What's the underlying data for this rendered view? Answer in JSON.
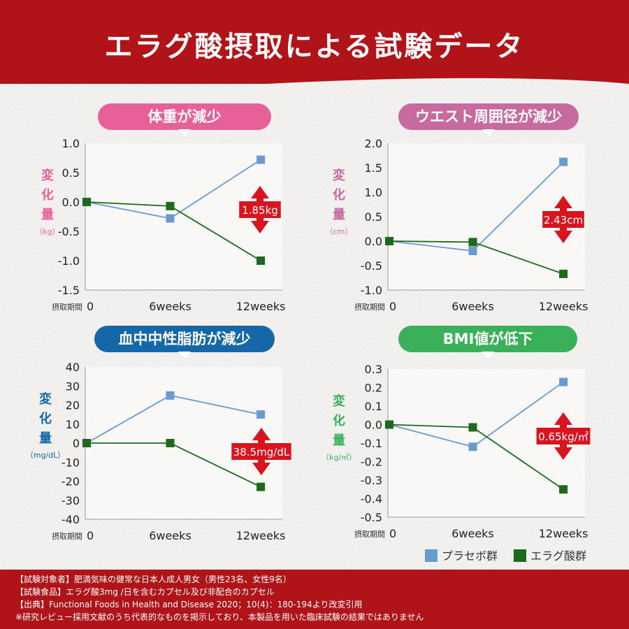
{
  "title": "エラグ酸摂取による試験データ",
  "colors": {
    "placebo": "#6a9bd0",
    "ellagic": "#1d6a1d",
    "badge": "#d8141e",
    "pink": "#e8609a",
    "mauve": "#c66aa0",
    "blue": "#1567a8",
    "green": "#3bb05a"
  },
  "legend": {
    "placebo": "プラセボ群",
    "ellagic": "エラグ酸群"
  },
  "chart_data": [
    {
      "type": "line",
      "pill": "体重が減少",
      "ylabel_chars": [
        "変",
        "化",
        "量"
      ],
      "unit": "（kg）",
      "xlabel": "摂取期間",
      "categories": [
        "0",
        "6weeks",
        "12weeks"
      ],
      "yticks": [
        "1.0",
        "0.5",
        "0.0",
        "-0.5",
        "-1.0",
        "-1.5"
      ],
      "ylim": [
        -1.5,
        1.0
      ],
      "series": [
        {
          "name": "プラセボ群",
          "values": [
            0.0,
            -0.28,
            0.72
          ]
        },
        {
          "name": "エラグ酸群",
          "values": [
            0.0,
            -0.07,
            -1.0
          ]
        }
      ],
      "badge": "1.85kg"
    },
    {
      "type": "line",
      "pill": "ウエスト周囲径が減少",
      "ylabel_chars": [
        "変",
        "化",
        "量"
      ],
      "unit": "（cm）",
      "xlabel": "摂取期間",
      "categories": [
        "0",
        "6weeks",
        "12weeks"
      ],
      "yticks": [
        "2.0",
        "1.5",
        "1.0",
        "0.5",
        "0.0",
        "-0.5",
        "-1.0"
      ],
      "ylim": [
        -1.0,
        2.0
      ],
      "series": [
        {
          "name": "プラセボ群",
          "values": [
            0.0,
            -0.2,
            1.62
          ]
        },
        {
          "name": "エラグ酸群",
          "values": [
            0.0,
            -0.02,
            -0.67
          ]
        }
      ],
      "badge": "2.43cm"
    },
    {
      "type": "line",
      "pill": "血中中性脂肪が減少",
      "ylabel_chars": [
        "変",
        "化",
        "量"
      ],
      "unit": "（mg/dL）",
      "xlabel": "摂取期間",
      "categories": [
        "0",
        "6weeks",
        "12weeks"
      ],
      "yticks": [
        "40",
        "30",
        "20",
        "10",
        "0",
        "-10",
        "-20",
        "-30",
        "-40"
      ],
      "ylim": [
        -40,
        40
      ],
      "series": [
        {
          "name": "プラセボ群",
          "values": [
            0,
            25,
            15
          ]
        },
        {
          "name": "エラグ酸群",
          "values": [
            0,
            0,
            -23
          ]
        }
      ],
      "badge": "38.5mg/dL"
    },
    {
      "type": "line",
      "pill": "BMI値が低下",
      "ylabel_chars": [
        "変",
        "化",
        "量"
      ],
      "unit": "（kg/㎡）",
      "xlabel": "摂取期間",
      "categories": [
        "0",
        "6weeks",
        "12weeks"
      ],
      "yticks": [
        "0.3",
        "0.2",
        "0.1",
        "0.0",
        "-0.1",
        "-0.2",
        "-0.3",
        "-0.4",
        "-0.5"
      ],
      "ylim": [
        -0.5,
        0.3
      ],
      "series": [
        {
          "name": "プラセボ群",
          "values": [
            0.0,
            -0.12,
            0.23
          ]
        },
        {
          "name": "エラグ酸群",
          "values": [
            0.0,
            -0.015,
            -0.35
          ]
        }
      ],
      "badge": "0.65kg/㎡"
    }
  ],
  "footer": [
    "【試験対象者】肥満気味の健常な日本人成人男女（男性23名、女性9名）",
    "【試験食品】エラグ酸3mg /日を含むカプセル及び非配合のカプセル",
    "【出典】Functional Foods in Health and Disease 2020；10(4)：180-194より改変引用",
    "※研究レビュー採用文献のうち代表的なものを掲示しており、本製品を用いた臨床試験の結果ではありません"
  ]
}
